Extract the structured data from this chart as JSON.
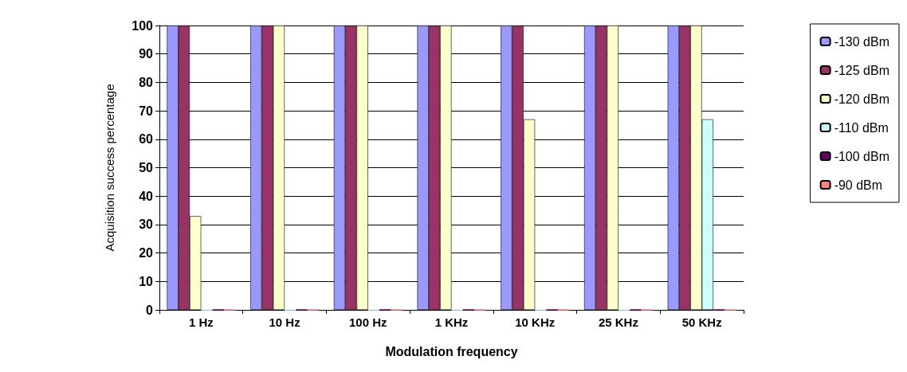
{
  "chart_data": {
    "type": "bar",
    "xlabel": "Modulation frequency",
    "ylabel": "Acquisition success percentage",
    "categories": [
      "1 Hz",
      "10 Hz",
      "100 Hz",
      "1 KHz",
      "10 KHz",
      "25 KHz",
      "50 KHz"
    ],
    "series": [
      {
        "name": "-130 dBm",
        "color": "#9999ff",
        "values": [
          100,
          100,
          100,
          100,
          100,
          100,
          100
        ]
      },
      {
        "name": "-125 dBm",
        "color": "#993366",
        "values": [
          100,
          100,
          100,
          100,
          100,
          100,
          100
        ]
      },
      {
        "name": "-120 dBm",
        "color": "#ffffcc",
        "values": [
          33,
          100,
          100,
          100,
          67,
          100,
          100
        ]
      },
      {
        "name": "-110 dBm",
        "color": "#ccffff",
        "values": [
          0,
          0,
          0,
          0,
          0,
          0,
          67
        ]
      },
      {
        "name": "-100 dBm",
        "color": "#660066",
        "values": [
          0,
          0,
          0,
          0,
          0,
          0,
          0
        ]
      },
      {
        "name": "-90 dBm",
        "color": "#ff8080",
        "values": [
          0,
          0,
          0,
          0,
          0,
          0,
          0
        ]
      }
    ],
    "ylim": [
      0,
      100
    ],
    "yticks": [
      0,
      10,
      20,
      30,
      40,
      50,
      60,
      70,
      80,
      90,
      100
    ],
    "grid": "y",
    "legend": "right"
  }
}
